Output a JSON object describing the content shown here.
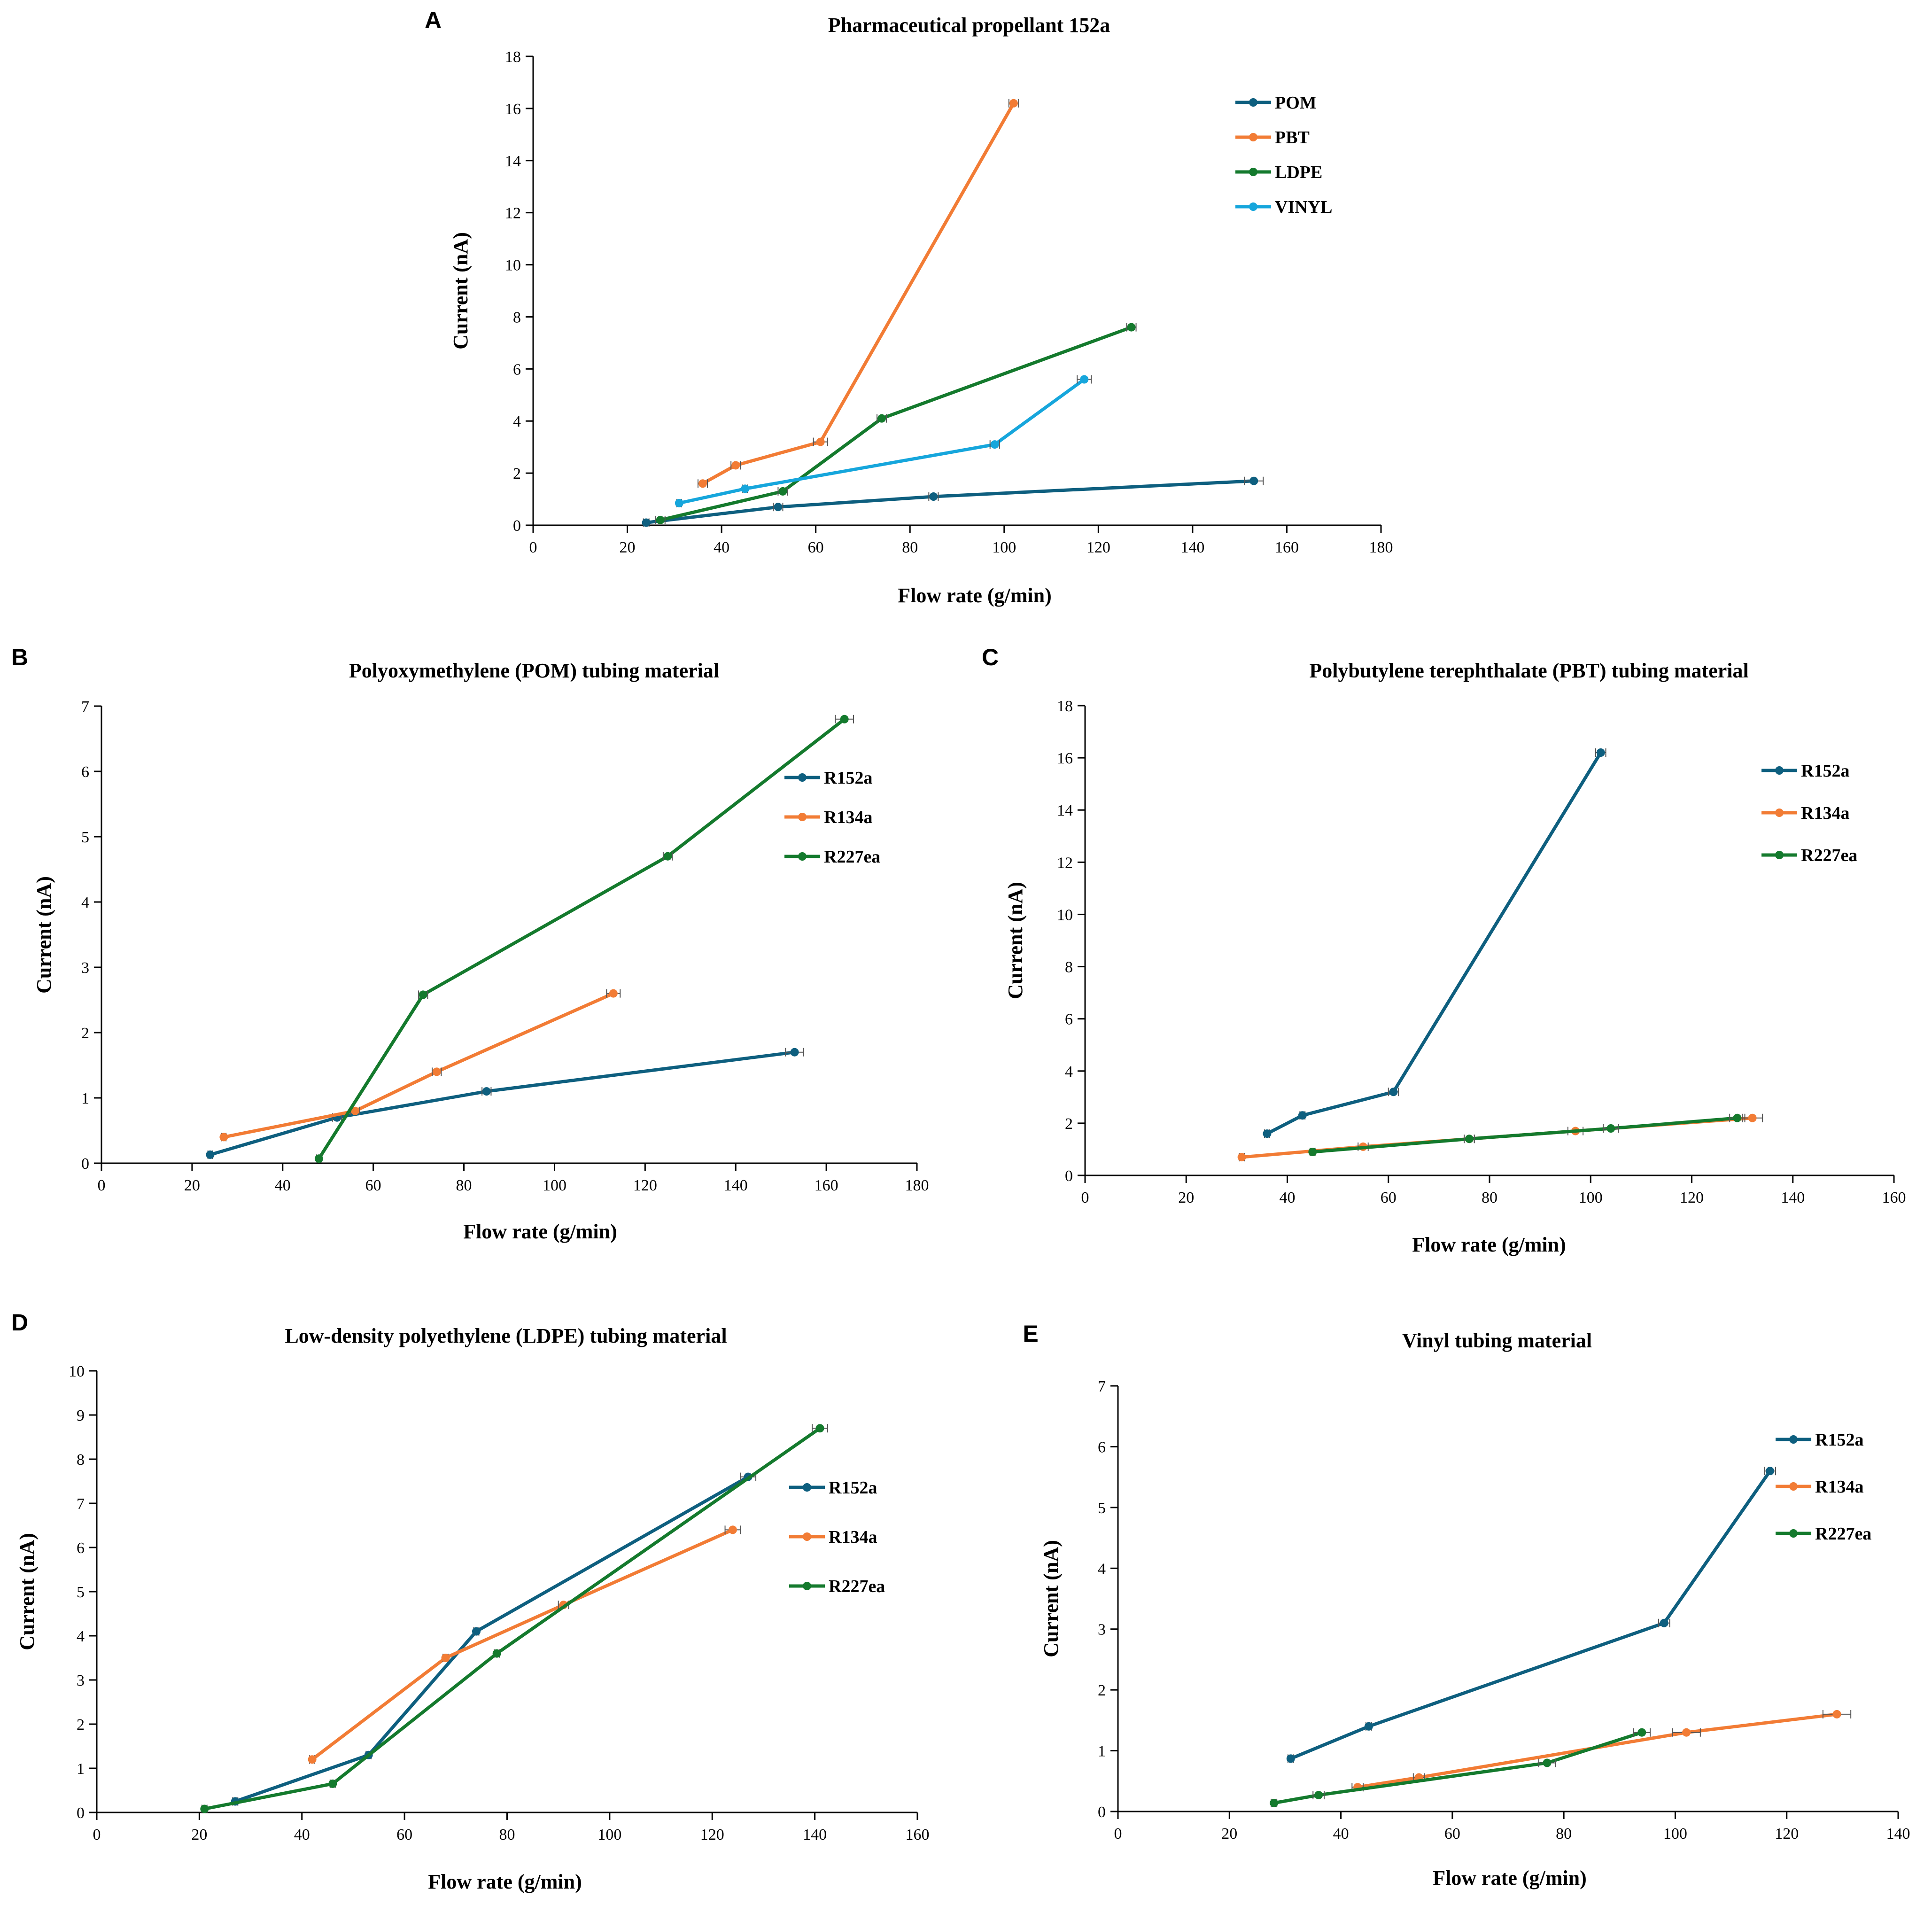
{
  "figure": {
    "colors": {
      "teal": "#0E5F7F",
      "orange": "#F27C35",
      "green": "#147A2D",
      "lightblue": "#16A6DC"
    }
  },
  "chart_data": [
    {
      "id": "A",
      "letter": "A",
      "type": "line",
      "title": "Pharmaceutical propellant  152a",
      "xlabel": "Flow rate (g/min)",
      "ylabel": "Current (nA)",
      "xlim": [
        0,
        180
      ],
      "ylim": [
        0,
        18
      ],
      "xticks": [
        0,
        20,
        40,
        60,
        80,
        100,
        120,
        140,
        160,
        180
      ],
      "yticks": [
        0,
        2,
        4,
        6,
        8,
        10,
        12,
        14,
        16,
        18
      ],
      "legend_position": "top-right",
      "series": [
        {
          "name": "POM",
          "color": "#0E5F7F",
          "points": [
            [
              24,
              0.1
            ],
            [
              52,
              0.7
            ],
            [
              85,
              1.1
            ],
            [
              153,
              1.7
            ]
          ],
          "xerr": [
            0.6,
            1,
            1,
            2
          ]
        },
        {
          "name": "PBT",
          "color": "#F27C35",
          "points": [
            [
              36,
              1.6
            ],
            [
              43,
              2.3
            ],
            [
              61,
              3.2
            ],
            [
              102,
              16.2
            ]
          ],
          "xerr": [
            1,
            1,
            1.5,
            1
          ]
        },
        {
          "name": "LDPE",
          "color": "#147A2D",
          "points": [
            [
              27,
              0.2
            ],
            [
              53,
              1.3
            ],
            [
              74,
              4.1
            ],
            [
              127,
              7.6
            ]
          ],
          "xerr": [
            1,
            1,
            1,
            1
          ]
        },
        {
          "name": "VINYL",
          "color": "#16A6DC",
          "points": [
            [
              31,
              0.85
            ],
            [
              45,
              1.4
            ],
            [
              98,
              3.1
            ],
            [
              117,
              5.6
            ]
          ],
          "xerr": [
            0.5,
            0.5,
            1,
            1.5
          ]
        }
      ]
    },
    {
      "id": "B",
      "letter": "B",
      "type": "line",
      "title": "Polyoxymethylene (POM) tubing material",
      "xlabel": "Flow rate (g/min)",
      "ylabel": "Current (nA)",
      "xlim": [
        0,
        180
      ],
      "ylim": [
        0,
        7
      ],
      "xticks": [
        0,
        20,
        40,
        60,
        80,
        100,
        120,
        140,
        160,
        180
      ],
      "yticks": [
        0,
        1,
        2,
        3,
        4,
        5,
        6,
        7
      ],
      "legend_position": "top-right",
      "series": [
        {
          "name": "R152a",
          "color": "#0E5F7F",
          "points": [
            [
              24,
              0.13
            ],
            [
              52,
              0.7
            ],
            [
              85,
              1.1
            ],
            [
              153,
              1.7
            ]
          ],
          "xerr": [
            0.5,
            1,
            1,
            2
          ]
        },
        {
          "name": "R134a",
          "color": "#F27C35",
          "points": [
            [
              27,
              0.4
            ],
            [
              56,
              0.8
            ],
            [
              74,
              1.4
            ],
            [
              113,
              2.6
            ]
          ],
          "xerr": [
            0.5,
            1,
            1,
            1.5
          ]
        },
        {
          "name": "R227ea",
          "color": "#147A2D",
          "points": [
            [
              48,
              0.07
            ],
            [
              71,
              2.58
            ],
            [
              125,
              4.7
            ],
            [
              164,
              6.8
            ]
          ],
          "xerr": [
            0.5,
            1,
            1,
            2
          ]
        }
      ]
    },
    {
      "id": "C",
      "letter": "C",
      "type": "line",
      "title": "Polybutylene terephthalate (PBT) tubing material",
      "xlabel": "Flow rate (g/min)",
      "ylabel": "Current (nA)",
      "xlim": [
        0,
        160
      ],
      "ylim": [
        0,
        18
      ],
      "xticks": [
        0,
        20,
        40,
        60,
        80,
        100,
        120,
        140,
        160
      ],
      "yticks": [
        0,
        2,
        4,
        6,
        8,
        10,
        12,
        14,
        16,
        18
      ],
      "legend_position": "top-right",
      "series": [
        {
          "name": "R152a",
          "color": "#0E5F7F",
          "points": [
            [
              36,
              1.6
            ],
            [
              43,
              2.3
            ],
            [
              61,
              3.2
            ],
            [
              102,
              16.2
            ]
          ],
          "xerr": [
            0.5,
            0.5,
            1,
            1
          ]
        },
        {
          "name": "R134a",
          "color": "#F27C35",
          "points": [
            [
              31,
              0.7
            ],
            [
              55,
              1.1
            ],
            [
              76,
              1.4
            ],
            [
              97,
              1.7
            ],
            [
              132,
              2.2
            ]
          ],
          "xerr": [
            0.5,
            1,
            1,
            1.5,
            2
          ]
        },
        {
          "name": "R227ea",
          "color": "#147A2D",
          "points": [
            [
              45,
              0.9
            ],
            [
              76,
              1.4
            ],
            [
              104,
              1.8
            ],
            [
              129,
              2.2
            ]
          ],
          "xerr": [
            0.5,
            1,
            1.5,
            1.5
          ]
        }
      ]
    },
    {
      "id": "D",
      "letter": "D",
      "type": "line",
      "title": "Low-density polyethylene (LDPE) tubing material",
      "xlabel": "Flow rate (g/min)",
      "ylabel": "Current (nA)",
      "xlim": [
        0,
        160
      ],
      "ylim": [
        0,
        10
      ],
      "xticks": [
        0,
        20,
        40,
        60,
        80,
        100,
        120,
        140,
        160
      ],
      "yticks": [
        0,
        1,
        2,
        3,
        4,
        5,
        6,
        7,
        8,
        9,
        10
      ],
      "legend_position": "right",
      "series": [
        {
          "name": "R152a",
          "color": "#0E5F7F",
          "points": [
            [
              27,
              0.25
            ],
            [
              53,
              1.3
            ],
            [
              74,
              4.1
            ],
            [
              127,
              7.6
            ]
          ],
          "xerr": [
            0.5,
            0.5,
            0.5,
            1.5
          ]
        },
        {
          "name": "R134a",
          "color": "#F27C35",
          "points": [
            [
              42,
              1.2
            ],
            [
              68,
              3.5
            ],
            [
              91,
              4.7
            ],
            [
              124,
              6.4
            ]
          ],
          "xerr": [
            0.5,
            0.5,
            1,
            1.5
          ]
        },
        {
          "name": "R227ea",
          "color": "#147A2D",
          "points": [
            [
              21,
              0.08
            ],
            [
              46,
              0.65
            ],
            [
              78,
              3.6
            ],
            [
              141,
              8.7
            ]
          ],
          "xerr": [
            0.5,
            0.5,
            0.5,
            1.5
          ]
        }
      ]
    },
    {
      "id": "E",
      "letter": "E",
      "type": "line",
      "title": "Vinyl tubing material",
      "xlabel": "Flow rate (g/min)",
      "ylabel": "Current (nA)",
      "xlim": [
        0,
        140
      ],
      "ylim": [
        0,
        7
      ],
      "xticks": [
        0,
        20,
        40,
        60,
        80,
        100,
        120,
        140
      ],
      "yticks": [
        0,
        1,
        2,
        3,
        4,
        5,
        6,
        7
      ],
      "legend_position": "top-right",
      "series": [
        {
          "name": "R152a",
          "color": "#0E5F7F",
          "points": [
            [
              31,
              0.87
            ],
            [
              45,
              1.4
            ],
            [
              98,
              3.1
            ],
            [
              117,
              5.6
            ]
          ],
          "xerr": [
            0.5,
            0.5,
            1,
            1
          ]
        },
        {
          "name": "R134a",
          "color": "#F27C35",
          "points": [
            [
              43,
              0.4
            ],
            [
              54,
              0.56
            ],
            [
              102,
              1.3
            ],
            [
              129,
              1.6
            ]
          ],
          "xerr": [
            1,
            1,
            2.5,
            2.5
          ]
        },
        {
          "name": "R227ea",
          "color": "#147A2D",
          "points": [
            [
              28,
              0.14
            ],
            [
              36,
              0.27
            ],
            [
              77,
              0.8
            ],
            [
              94,
              1.3
            ]
          ],
          "xerr": [
            0.5,
            1,
            1.5,
            1.5
          ]
        }
      ]
    }
  ]
}
